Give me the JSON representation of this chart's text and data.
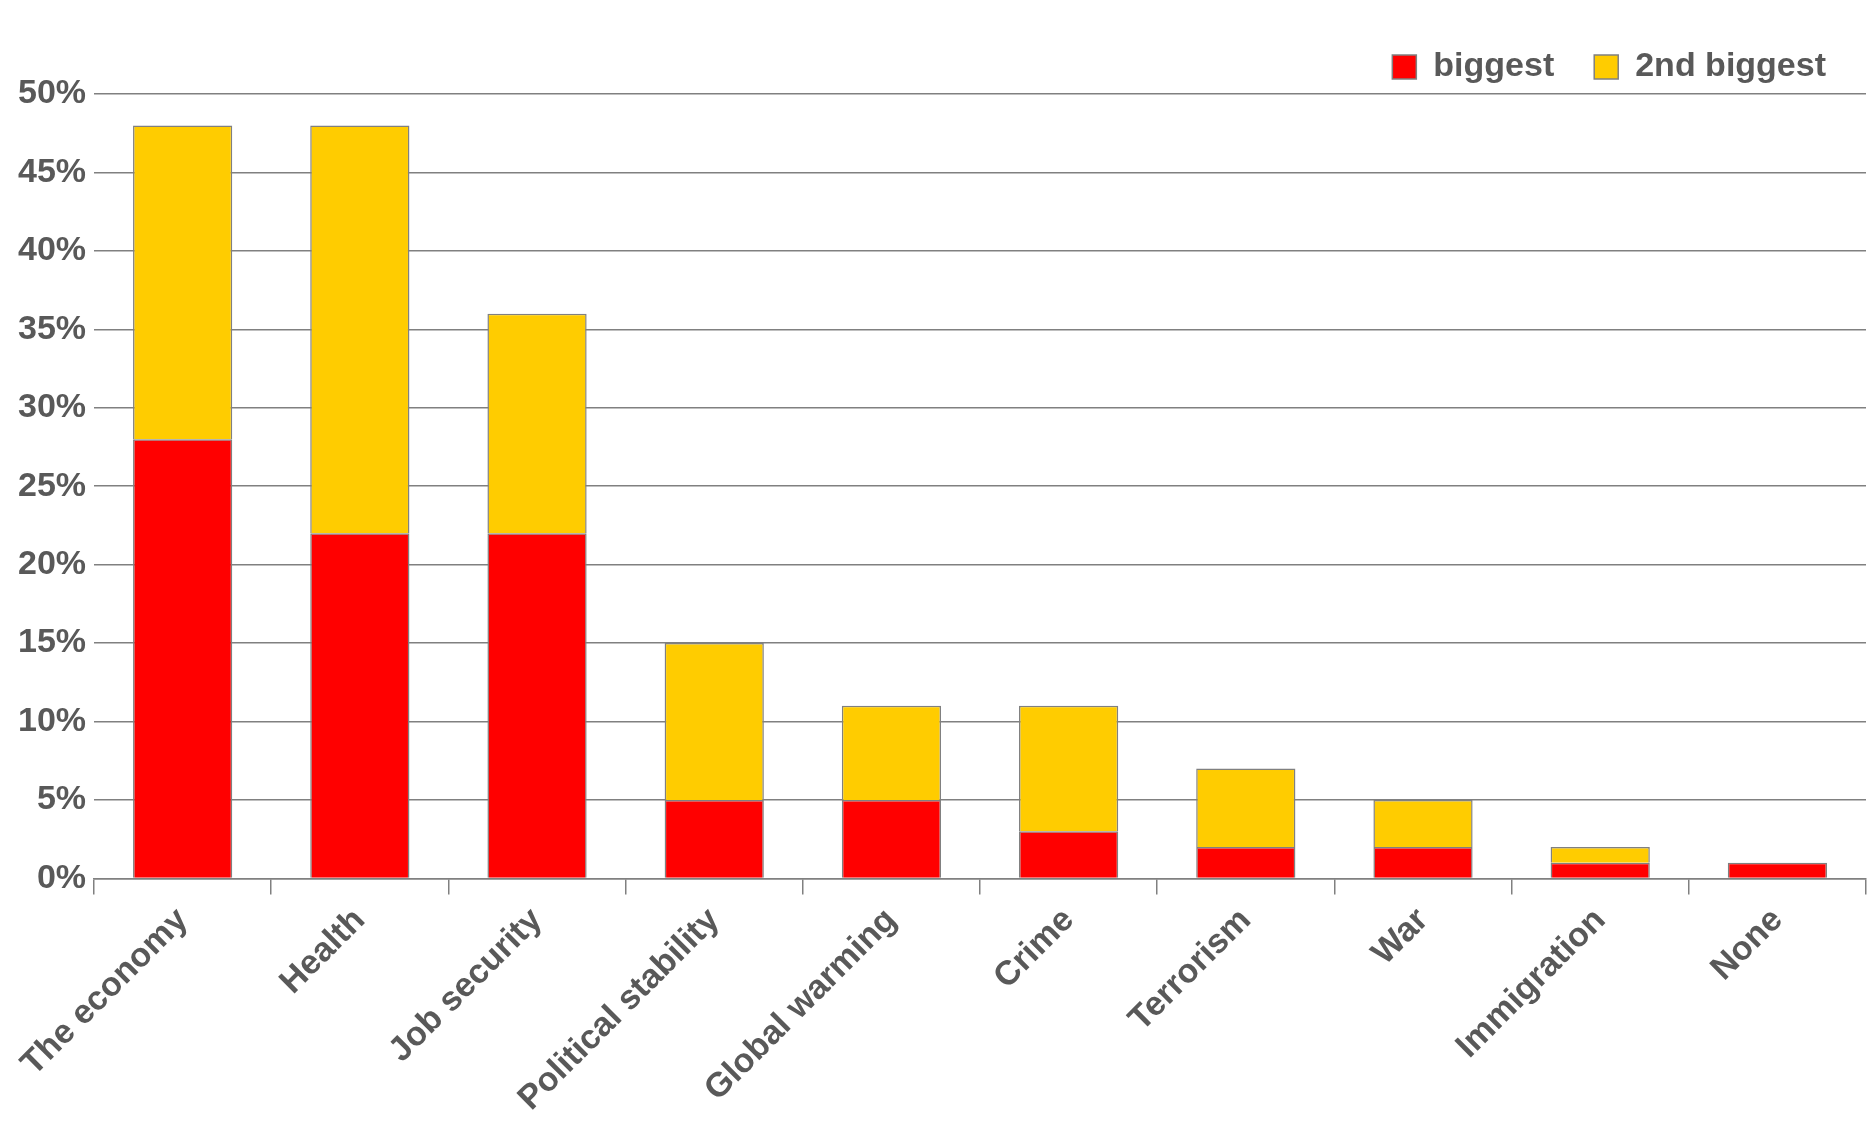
{
  "chart_data": {
    "type": "bar",
    "stacked": true,
    "categories": [
      "The economy",
      "Health",
      "Job security",
      "Political stability",
      "Global warming",
      "Crime",
      "Terrorism",
      "War",
      "Immigration",
      "None"
    ],
    "series": [
      {
        "name": "biggest",
        "color": "#ff0000",
        "values": [
          28,
          22,
          22,
          5,
          5,
          3,
          2,
          2,
          1,
          1
        ]
      },
      {
        "name": "2nd biggest",
        "color": "#ffcc00",
        "values": [
          20,
          26,
          14,
          10,
          6,
          8,
          5,
          3,
          1,
          0
        ]
      }
    ],
    "ylim": [
      0,
      50
    ],
    "yticks": [
      {
        "value": 0,
        "label": "0%"
      },
      {
        "value": 5,
        "label": "5%"
      },
      {
        "value": 10,
        "label": "10%"
      },
      {
        "value": 15,
        "label": "15%"
      },
      {
        "value": 20,
        "label": "20%"
      },
      {
        "value": 25,
        "label": "25%"
      },
      {
        "value": 30,
        "label": "30%"
      },
      {
        "value": 35,
        "label": "35%"
      },
      {
        "value": 40,
        "label": "40%"
      },
      {
        "value": 45,
        "label": "45%"
      },
      {
        "value": 50,
        "label": "50%"
      }
    ],
    "grid": "y",
    "legend": "top right"
  }
}
